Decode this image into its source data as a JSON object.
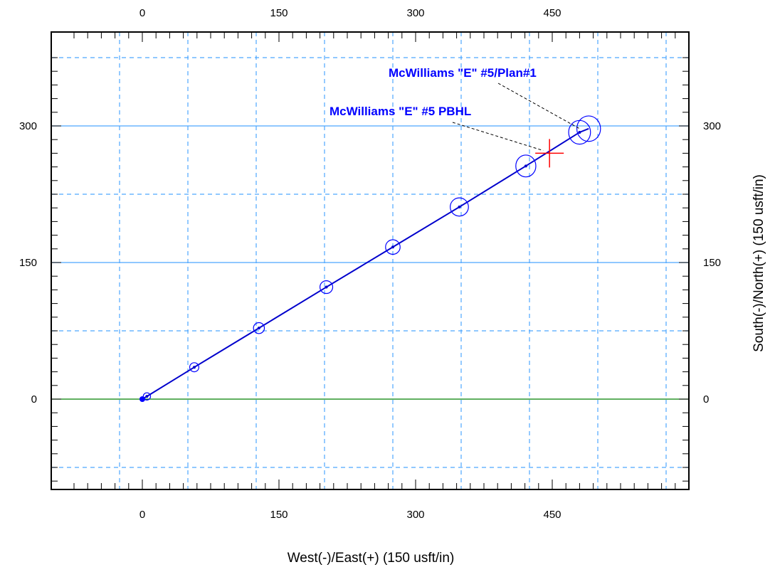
{
  "chart_data": {
    "type": "scatter",
    "xlabel": "West(-)/East(+) (150 usft/in)",
    "ylabel": "South(-)/North(+) (150 usft/in)",
    "xlim": [
      -100,
      600
    ],
    "ylim": [
      -100,
      385
    ],
    "x_ticks": [
      0,
      150,
      300,
      450
    ],
    "y_ticks": [
      0,
      150,
      300
    ],
    "grid": true,
    "series": [
      {
        "x": [
          0,
          5,
          57,
          128,
          202,
          275,
          348,
          421,
          480
        ],
        "y": [
          0,
          3,
          35,
          78,
          123,
          167,
          211,
          256,
          293
        ]
      }
    ],
    "uncertainty_ellipses": [
      {
        "x": 5,
        "y": 3,
        "rx": 4,
        "ry": 4
      },
      {
        "x": 57,
        "y": 35,
        "rx": 5,
        "ry": 5
      },
      {
        "x": 128,
        "y": 78,
        "rx": 6,
        "ry": 6
      },
      {
        "x": 202,
        "y": 123,
        "rx": 7,
        "ry": 7
      },
      {
        "x": 275,
        "y": 167,
        "rx": 8,
        "ry": 8
      },
      {
        "x": 348,
        "y": 211,
        "rx": 10,
        "ry": 10
      },
      {
        "x": 421,
        "y": 256,
        "rx": 11,
        "ry": 12
      },
      {
        "x": 480,
        "y": 293,
        "rx": 12,
        "ry": 13
      },
      {
        "x": 490,
        "y": 297,
        "rx": 13,
        "ry": 14
      }
    ],
    "target": {
      "x": 447,
      "y": 270
    },
    "annotations": [
      {
        "text": "McWilliams \"E\" #5/Plan#1",
        "points_to": {
          "x": 480,
          "y": 297
        }
      },
      {
        "text": "McWilliams \"E\" #5 PBHL",
        "points_to": {
          "x": 440,
          "y": 273
        }
      }
    ],
    "colors": {
      "trajectory": "#0000cc",
      "ellipse": "#0000ff",
      "grid": "#4da6ff",
      "zero_line": "#008000",
      "target": "#ff0000",
      "annotation_text": "#0000ff"
    }
  }
}
